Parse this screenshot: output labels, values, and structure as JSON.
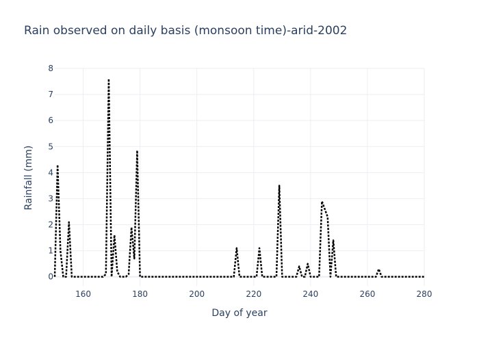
{
  "chart_data": {
    "type": "line",
    "title": "Rain observed on daily basis (monsoon time)-arid-2002",
    "xlabel": "Day of year",
    "ylabel": "Rainfall (mm)",
    "xlim": [
      150,
      280
    ],
    "ylim": [
      -0.35,
      8
    ],
    "xticks": [
      160,
      180,
      200,
      220,
      240,
      260,
      280
    ],
    "yticks": [
      0,
      1,
      2,
      3,
      4,
      5,
      6,
      7,
      8
    ],
    "grid": true,
    "legend": "none",
    "series": [
      {
        "color": "#000000",
        "dash": "dot",
        "x": [
          150,
          151,
          152,
          153,
          154,
          155,
          156,
          157,
          158,
          159,
          160,
          161,
          162,
          163,
          164,
          165,
          166,
          167,
          168,
          169,
          170,
          171,
          172,
          173,
          174,
          175,
          176,
          177,
          178,
          179,
          180,
          181,
          182,
          183,
          184,
          185,
          186,
          187,
          188,
          189,
          190,
          191,
          192,
          193,
          194,
          195,
          196,
          197,
          198,
          199,
          200,
          201,
          202,
          203,
          204,
          205,
          206,
          207,
          208,
          209,
          210,
          211,
          212,
          213,
          214,
          215,
          216,
          217,
          218,
          219,
          220,
          221,
          222,
          223,
          224,
          225,
          226,
          227,
          228,
          229,
          230,
          231,
          232,
          233,
          234,
          235,
          236,
          237,
          238,
          239,
          240,
          241,
          242,
          243,
          244,
          245,
          246,
          247,
          248,
          249,
          250,
          251,
          252,
          253,
          254,
          255,
          256,
          257,
          258,
          259,
          260,
          261,
          262,
          263,
          264,
          265,
          266,
          267,
          268,
          269,
          270,
          271,
          272,
          273,
          274,
          275,
          276,
          277,
          278,
          279,
          280
        ],
        "y": [
          0,
          4.3,
          1.0,
          0,
          0,
          2.1,
          0,
          0,
          0,
          0,
          0,
          0,
          0,
          0,
          0,
          0,
          0,
          0,
          0.1,
          7.6,
          0,
          1.6,
          0.2,
          0,
          0,
          0,
          0.1,
          1.9,
          0.7,
          4.85,
          0,
          0,
          0,
          0,
          0,
          0,
          0,
          0,
          0,
          0,
          0,
          0,
          0,
          0,
          0,
          0,
          0,
          0,
          0,
          0,
          0,
          0,
          0,
          0,
          0,
          0,
          0,
          0,
          0,
          0,
          0,
          0,
          0,
          0,
          1.1,
          0,
          0,
          0,
          0,
          0,
          0,
          0,
          1.1,
          0,
          0,
          0,
          0,
          0,
          0,
          3.5,
          0,
          0,
          0,
          0,
          0,
          0,
          0.4,
          0,
          0,
          0.5,
          0,
          0,
          0,
          0,
          2.9,
          2.6,
          2.3,
          0,
          1.4,
          0,
          0,
          0,
          0,
          0,
          0,
          0,
          0,
          0,
          0,
          0,
          0,
          0,
          0,
          0,
          0.3,
          0,
          0,
          0,
          0,
          0,
          0,
          0,
          0,
          0,
          0,
          0,
          0,
          0,
          0,
          0,
          0
        ]
      }
    ]
  }
}
